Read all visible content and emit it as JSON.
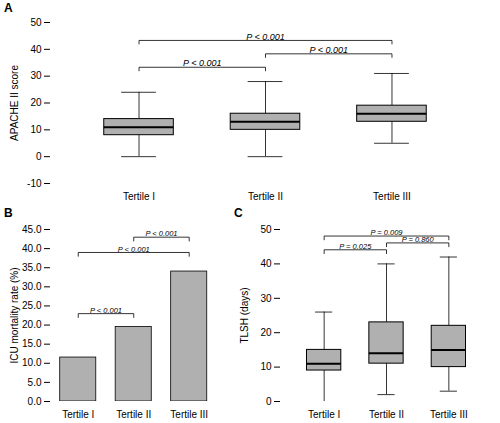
{
  "chart_data": [
    {
      "type": "box",
      "title": "A",
      "ylabel": "APACHE II score",
      "categories": [
        "Tertile I",
        "Tertile II",
        "Tertile III"
      ],
      "boxes": [
        {
          "med": 11,
          "q1": 8,
          "q3": 14,
          "whislo": 0,
          "whishi": 24
        },
        {
          "med": 13,
          "q1": 10,
          "q3": 16,
          "whislo": 0,
          "whishi": 28
        },
        {
          "med": 16,
          "q1": 13,
          "q3": 19,
          "whislo": 5,
          "whishi": 31
        }
      ],
      "color": "#b0b0b0",
      "ylim": [
        -10,
        50
      ],
      "yticks": [
        -10,
        0,
        10,
        20,
        30,
        40,
        50
      ],
      "grid": false,
      "annotations": [
        {
          "from": "Tertile I",
          "to": "Tertile II",
          "y": 32,
          "label": "P < 0.001"
        },
        {
          "from": "Tertile I",
          "to": "Tertile III",
          "y": 42,
          "label": "P < 0.001"
        },
        {
          "from": "Tertile II",
          "to": "Tertile III",
          "y": 37,
          "label": "P < 0.001"
        }
      ]
    },
    {
      "type": "bar",
      "title": "B",
      "ylabel": "ICU mortality rate (%)",
      "categories": [
        "Tertile I",
        "Tertile II",
        "Tertile III"
      ],
      "values": [
        11.5,
        19.5,
        34.0
      ],
      "color": "#b0b0b0",
      "ylim": [
        0,
        45
      ],
      "yticks": [
        {
          "value": 0,
          "label": "0.0"
        },
        {
          "value": 5,
          "label": "5.0"
        },
        {
          "value": 10,
          "label": "10.0"
        },
        {
          "value": 15,
          "label": "15.0"
        },
        {
          "value": 20,
          "label": "20.0"
        },
        {
          "value": 25,
          "label": "25.0"
        },
        {
          "value": 30,
          "label": "30.0"
        },
        {
          "value": 35,
          "label": "35.0"
        },
        {
          "value": 40,
          "label": "40.0"
        },
        {
          "value": 45,
          "label": "45.0"
        }
      ],
      "grid": false,
      "annotations": [
        {
          "from": "Tertile I",
          "to": "Tertile II",
          "y": 22,
          "label": "P < 0.001"
        },
        {
          "from": "Tertile I",
          "to": "Tertile III",
          "y": 38,
          "label": "P < 0.001"
        },
        {
          "from": "Tertile II",
          "to": "Tertile III",
          "y": 42,
          "label": "P < 0.001"
        }
      ]
    },
    {
      "type": "box",
      "title": "C",
      "ylabel": "TLSH (days)",
      "categories": [
        "Tertile I",
        "Tertile II",
        "Tertile III"
      ],
      "boxes": [
        {
          "med": 11,
          "q1": 9,
          "q3": 15,
          "whislo": 0,
          "whishi": 26
        },
        {
          "med": 14,
          "q1": 11,
          "q3": 23,
          "whislo": 2,
          "whishi": 40
        },
        {
          "med": 15,
          "q1": 10,
          "q3": 22,
          "whislo": 3,
          "whishi": 42
        }
      ],
      "color": "#b0b0b0",
      "ylim": [
        0,
        50
      ],
      "yticks": [
        0,
        10,
        20,
        30,
        40,
        50
      ],
      "grid": false,
      "annotations": [
        {
          "from": "Tertile I",
          "to": "Tertile II",
          "y": 43,
          "label": "P = 0.025"
        },
        {
          "from": "Tertile I",
          "to": "Tertile III",
          "y": 47,
          "label": "P = 0.009"
        },
        {
          "from": "Tertile II",
          "to": "Tertile III",
          "y": 45,
          "label": "P = 0.860"
        }
      ]
    }
  ]
}
